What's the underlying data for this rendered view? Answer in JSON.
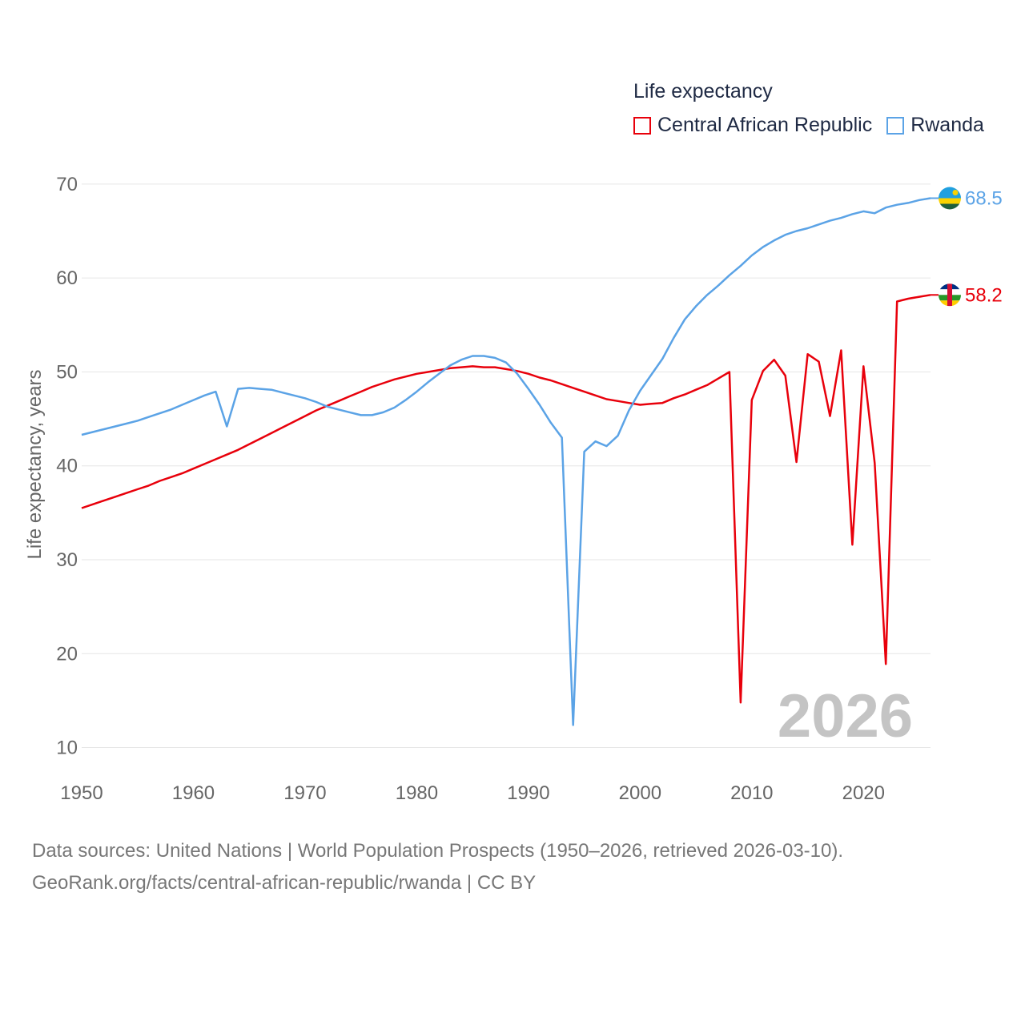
{
  "legend": {
    "title": "Life expectancy",
    "items": [
      {
        "label": "Central African Republic",
        "color": "#e8000b"
      },
      {
        "label": "Rwanda",
        "color": "#5ba3e6"
      }
    ]
  },
  "year_label": "2026",
  "end_labels": {
    "rwanda": "68.5",
    "car": "58.2"
  },
  "source": {
    "line1": "Data sources: United Nations | World Population Prospects (1950–2026, retrieved 2026-03-10).",
    "line2": "GeoRank.org/facts/central-african-republic/rwanda | CC BY"
  },
  "colors": {
    "car": "#e8000b",
    "rwanda": "#5ba3e6",
    "grid": "#e6e6e6",
    "axis_text": "#666666",
    "watermark": "#c4c4c4"
  },
  "chart_data": {
    "type": "line",
    "title": "Life expectancy",
    "xlabel": "",
    "ylabel": "Life expectancy, years",
    "xlim": [
      1950,
      2026
    ],
    "ylim": [
      8,
      74
    ],
    "xticks": [
      1950,
      1960,
      1970,
      1980,
      1990,
      2000,
      2010,
      2020
    ],
    "yticks": [
      10,
      20,
      30,
      40,
      50,
      60,
      70
    ],
    "grid": true,
    "legend_position": "top-right",
    "x": [
      1950,
      1951,
      1952,
      1953,
      1954,
      1955,
      1956,
      1957,
      1958,
      1959,
      1960,
      1961,
      1962,
      1963,
      1964,
      1965,
      1966,
      1967,
      1968,
      1969,
      1970,
      1971,
      1972,
      1973,
      1974,
      1975,
      1976,
      1977,
      1978,
      1979,
      1980,
      1981,
      1982,
      1983,
      1984,
      1985,
      1986,
      1987,
      1988,
      1989,
      1990,
      1991,
      1992,
      1993,
      1994,
      1995,
      1996,
      1997,
      1998,
      1999,
      2000,
      2001,
      2002,
      2003,
      2004,
      2005,
      2006,
      2007,
      2008,
      2009,
      2010,
      2011,
      2012,
      2013,
      2014,
      2015,
      2016,
      2017,
      2018,
      2019,
      2020,
      2021,
      2022,
      2023,
      2024,
      2025,
      2026
    ],
    "series": [
      {
        "name": "Central African Republic",
        "values": [
          35.5,
          35.9,
          36.3,
          36.7,
          37.1,
          37.5,
          37.9,
          38.4,
          38.8,
          39.2,
          39.7,
          40.2,
          40.7,
          41.2,
          41.7,
          42.3,
          42.9,
          43.5,
          44.1,
          44.7,
          45.3,
          45.9,
          46.4,
          46.9,
          47.4,
          47.9,
          48.4,
          48.8,
          49.2,
          49.5,
          49.8,
          50.0,
          50.2,
          50.4,
          50.5,
          50.6,
          50.5,
          50.5,
          50.3,
          50.1,
          49.8,
          49.4,
          49.1,
          48.7,
          48.3,
          47.9,
          47.5,
          47.1,
          46.9,
          46.7,
          46.5,
          46.6,
          46.7,
          47.2,
          47.6,
          48.1,
          48.6,
          49.3,
          50.0,
          14.8,
          47.0,
          50.1,
          51.3,
          49.6,
          40.4,
          51.9,
          51.1,
          45.3,
          52.3,
          31.6,
          50.6,
          40.3,
          18.9,
          57.5,
          57.8,
          58.0,
          58.2
        ]
      },
      {
        "name": "Rwanda",
        "values": [
          43.3,
          43.6,
          43.9,
          44.2,
          44.5,
          44.8,
          45.2,
          45.6,
          46.0,
          46.5,
          47.0,
          47.5,
          47.9,
          44.2,
          48.2,
          48.3,
          48.2,
          48.1,
          47.8,
          47.5,
          47.2,
          46.8,
          46.3,
          46.0,
          45.7,
          45.4,
          45.4,
          45.7,
          46.2,
          47.0,
          47.9,
          48.9,
          49.8,
          50.7,
          51.3,
          51.7,
          51.7,
          51.5,
          51.0,
          49.8,
          48.2,
          46.5,
          44.6,
          43.0,
          12.4,
          41.5,
          42.6,
          42.1,
          43.2,
          45.9,
          48.0,
          49.7,
          51.4,
          53.6,
          55.6,
          57.0,
          58.2,
          59.2,
          60.3,
          61.3,
          62.4,
          63.3,
          64.0,
          64.6,
          65.0,
          65.3,
          65.7,
          66.1,
          66.4,
          66.8,
          67.1,
          66.9,
          67.5,
          67.8,
          68.0,
          68.3,
          68.5
        ]
      }
    ]
  }
}
